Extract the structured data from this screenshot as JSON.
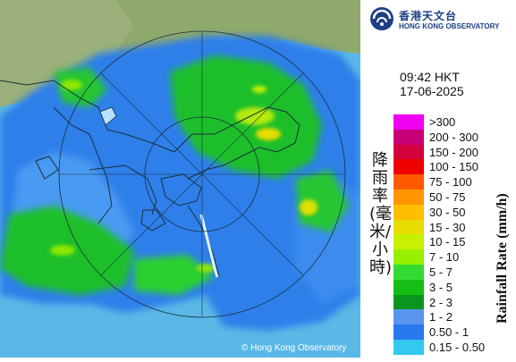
{
  "logo": {
    "chinese": "香港天文台",
    "english": "HONG KONG OBSERVATORY",
    "icon": "hko-logo-icon"
  },
  "time": "09:42 HKT",
  "date": "17-06-2025",
  "label_zh": "降雨率(毫米/小時)",
  "label_en": "Rainfall Rate (mm/h)",
  "copyright": "© Hong Kong Observatory",
  "legend": [
    {
      "label": ">300",
      "color": "#f000f0"
    },
    {
      "label": "200 - 300",
      "color": "#c80078"
    },
    {
      "label": "150 - 200",
      "color": "#d2003c"
    },
    {
      "label": "100 - 150",
      "color": "#f00000"
    },
    {
      "label": "75 - 100",
      "color": "#ff5a00"
    },
    {
      "label": "50 - 75",
      "color": "#ff9600"
    },
    {
      "label": "30 - 50",
      "color": "#ffbe00"
    },
    {
      "label": "15 - 30",
      "color": "#e6dc00"
    },
    {
      "label": "10 - 15",
      "color": "#c8f000"
    },
    {
      "label": "7 - 10",
      "color": "#96f000"
    },
    {
      "label": "5 - 7",
      "color": "#32dc32"
    },
    {
      "label": "3 - 5",
      "color": "#14be14"
    },
    {
      "label": "2 - 3",
      "color": "#0a961e"
    },
    {
      "label": "1 - 2",
      "color": "#5a96f0"
    },
    {
      "label": "0.50 - 1",
      "color": "#2878f0"
    },
    {
      "label": "0.15 - 0.50",
      "color": "#32c8f0"
    }
  ]
}
